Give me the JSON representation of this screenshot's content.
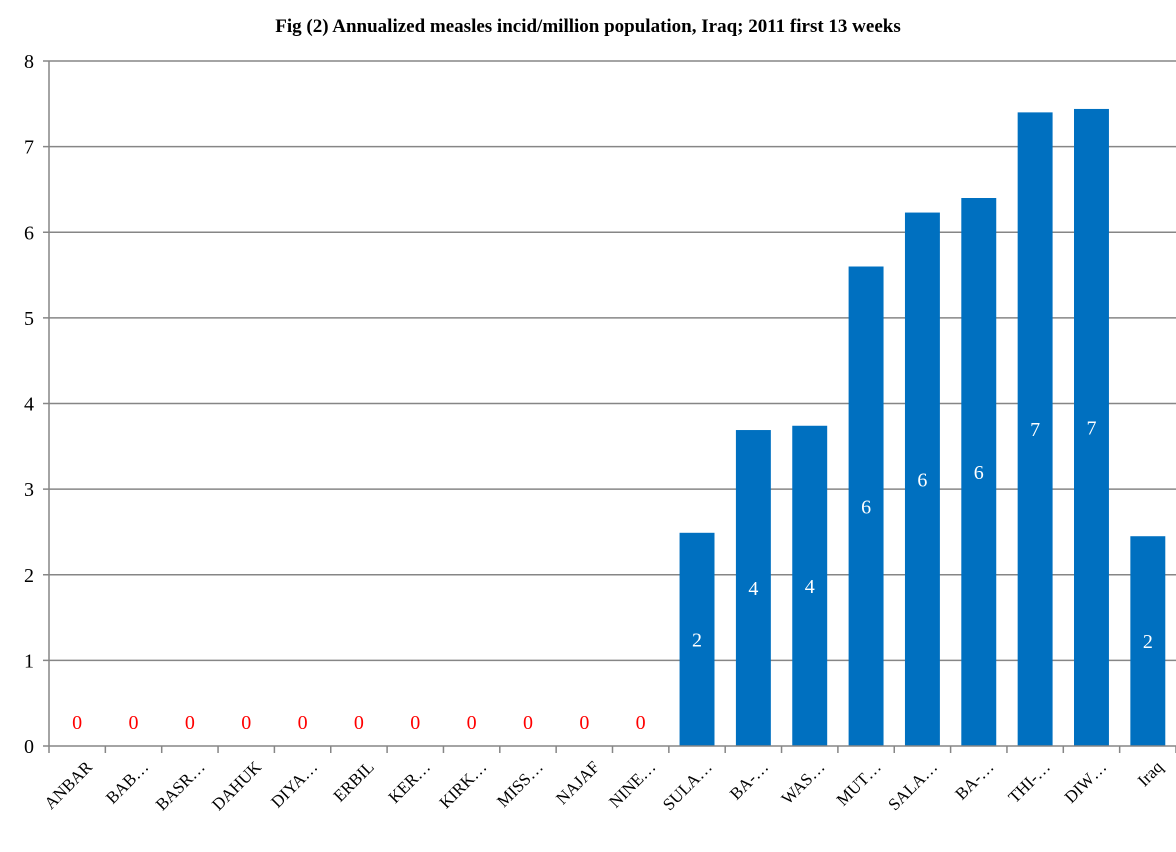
{
  "chart_data": {
    "type": "bar",
    "title": "Fig (2) Annualized measles incid/million population, Iraq;  2011 first 13  weeks",
    "xlabel": "",
    "ylabel": "",
    "ylim": [
      0,
      8
    ],
    "yticks": [
      0,
      1,
      2,
      3,
      4,
      5,
      6,
      7,
      8
    ],
    "grid": true,
    "categories": [
      "ANBAR",
      "BAB…",
      "BASR…",
      "DAHUK",
      "DIYA…",
      "ERBIL",
      "KER…",
      "KIRK…",
      "MISS…",
      "NAJAF",
      "NINE…",
      "SULA…",
      "BA-…",
      "WAS…",
      "MUT…",
      "SALA…",
      "BA-…",
      "THI-…",
      "DIW…",
      "Iraq"
    ],
    "values": [
      0,
      0,
      0,
      0,
      0,
      0,
      0,
      0,
      0,
      0,
      0,
      2.49,
      3.69,
      3.74,
      5.6,
      6.23,
      6.4,
      7.4,
      7.44,
      2.45
    ],
    "data_labels": [
      "0",
      "0",
      "0",
      "0",
      "0",
      "0",
      "0",
      "0",
      "0",
      "0",
      "0",
      "2",
      "4",
      "4",
      "6",
      "6",
      "6",
      "7",
      "7",
      "2"
    ],
    "colors": {
      "bar": "#0070C0",
      "zero_label": "#FF0000",
      "bar_label": "#FFFFFF",
      "grid": "#868686"
    }
  }
}
